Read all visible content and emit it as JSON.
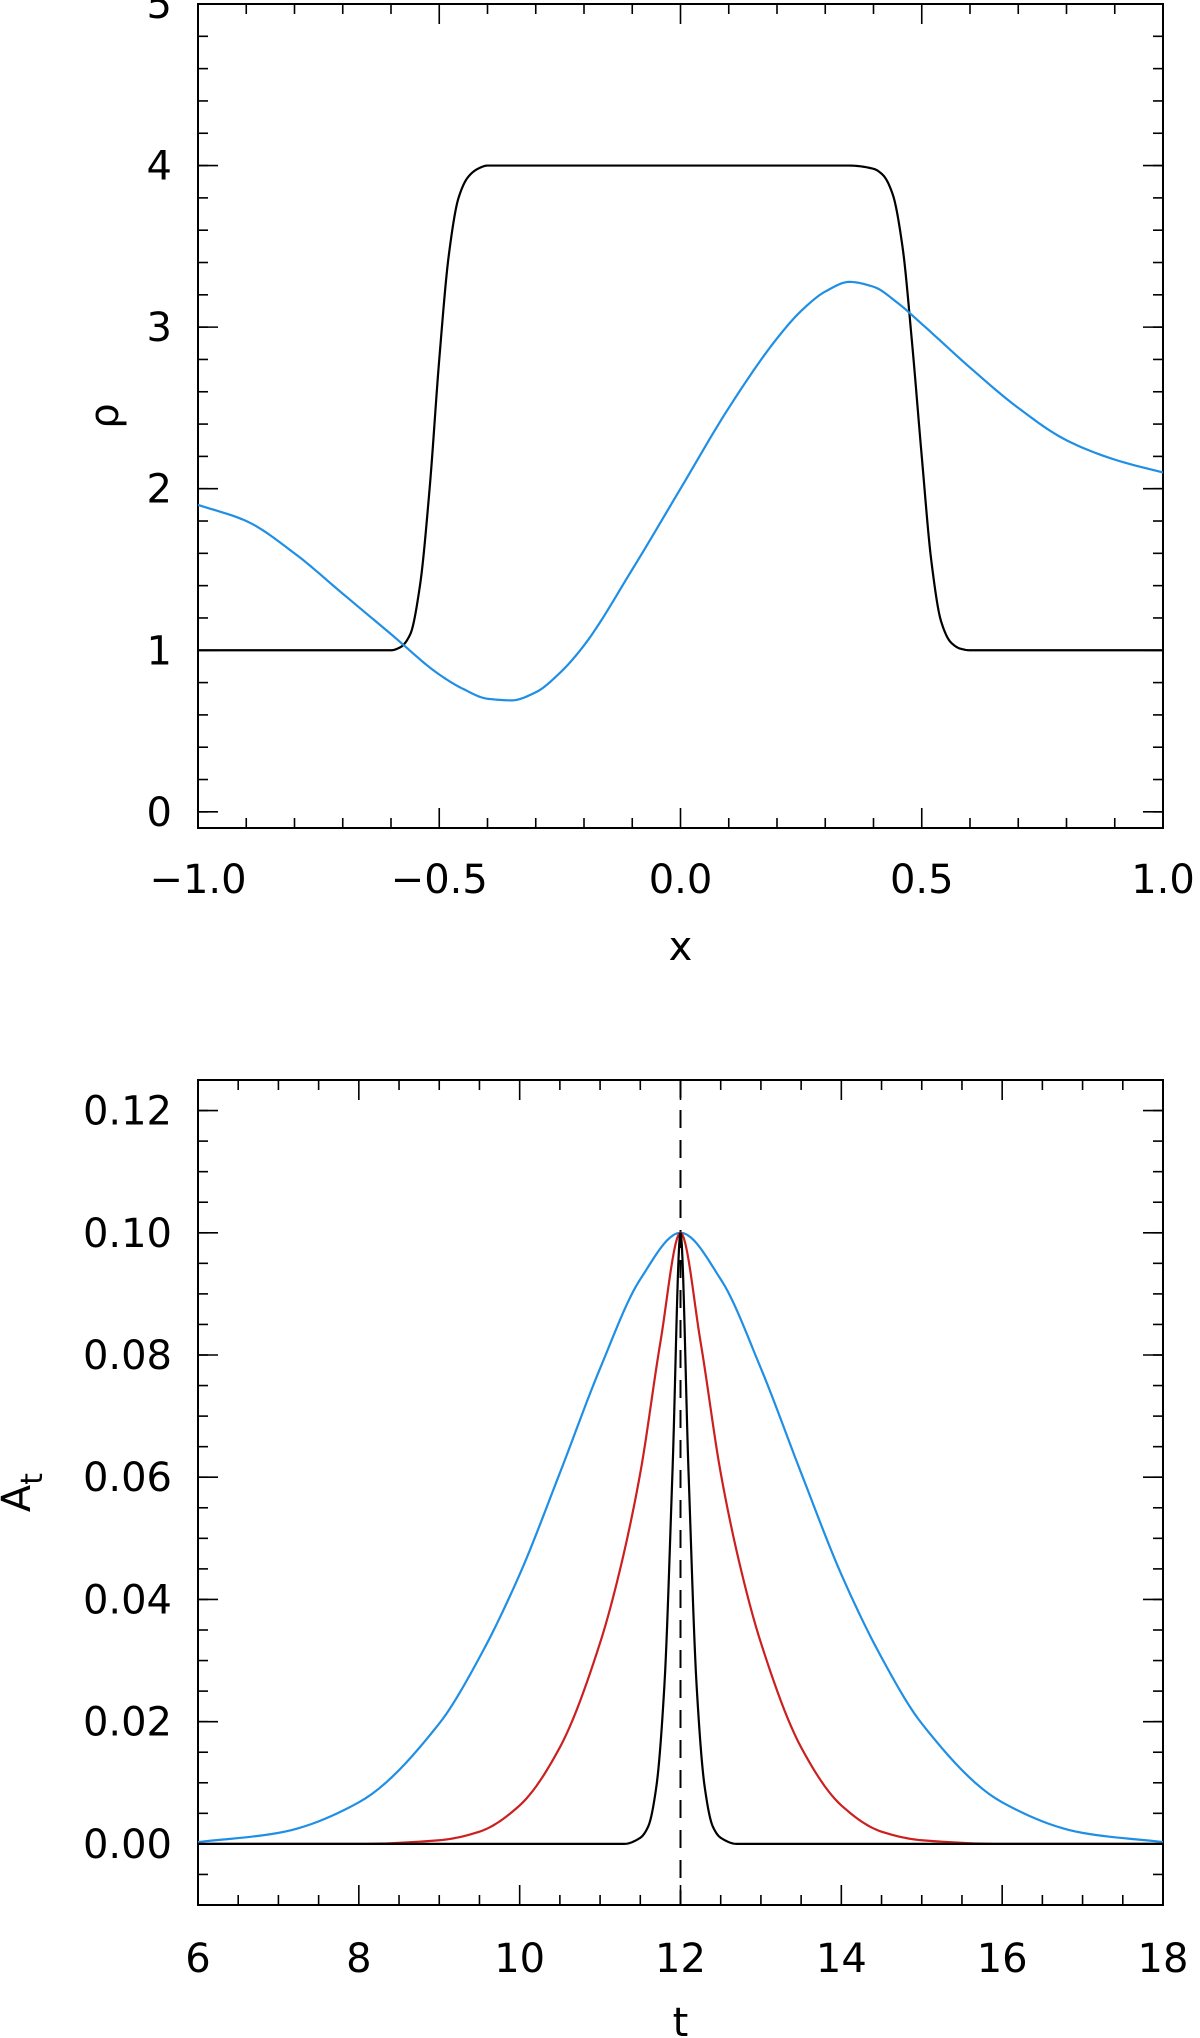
{
  "chart_data": [
    {
      "type": "line",
      "xlabel": "x",
      "ylabel": "ρ",
      "xlim": [
        -1.0,
        1.0
      ],
      "ylim": [
        -0.1,
        5.0
      ],
      "xticks": [
        -1.0,
        -0.5,
        0.0,
        0.5,
        1.0
      ],
      "xtick_labels": [
        "−1.0",
        "−0.5",
        "0.0",
        "0.5",
        "1.0"
      ],
      "yticks": [
        0,
        1,
        2,
        3,
        4,
        5
      ],
      "ytick_labels": [
        "0",
        "1",
        "2",
        "3",
        "4",
        "5"
      ],
      "grid": false,
      "series": [
        {
          "color": "#000000",
          "x": [
            -1.0,
            -0.9,
            -0.8,
            -0.7,
            -0.6,
            -0.58,
            -0.56,
            -0.54,
            -0.52,
            -0.5,
            -0.48,
            -0.46,
            -0.44,
            -0.42,
            -0.4,
            -0.35,
            -0.3,
            -0.2,
            -0.1,
            0.0,
            0.1,
            0.2,
            0.3,
            0.35,
            0.4,
            0.42,
            0.44,
            0.46,
            0.48,
            0.5,
            0.52,
            0.54,
            0.56,
            0.58,
            0.6,
            0.7,
            0.8,
            0.9,
            1.0
          ],
          "y": [
            1.0,
            1.0,
            1.0,
            1.0,
            1.0,
            1.02,
            1.1,
            1.4,
            2.0,
            2.8,
            3.45,
            3.8,
            3.93,
            3.98,
            4.0,
            4.0,
            4.0,
            4.0,
            4.0,
            4.0,
            4.0,
            4.0,
            4.0,
            4.0,
            3.98,
            3.94,
            3.82,
            3.5,
            2.9,
            2.2,
            1.55,
            1.18,
            1.05,
            1.01,
            1.0,
            1.0,
            1.0,
            1.0,
            1.0
          ]
        },
        {
          "color": "#1f8fe5",
          "x": [
            -1.0,
            -0.9,
            -0.8,
            -0.7,
            -0.6,
            -0.5,
            -0.45,
            -0.4,
            -0.35,
            -0.3,
            -0.25,
            -0.2,
            -0.1,
            0.0,
            0.1,
            0.2,
            0.25,
            0.3,
            0.35,
            0.4,
            0.45,
            0.5,
            0.6,
            0.7,
            0.8,
            0.9,
            1.0
          ],
          "y": [
            1.9,
            1.8,
            1.6,
            1.35,
            1.1,
            0.85,
            0.76,
            0.7,
            0.69,
            0.74,
            0.86,
            1.03,
            1.5,
            2.0,
            2.5,
            2.93,
            3.1,
            3.22,
            3.28,
            3.25,
            3.15,
            3.02,
            2.75,
            2.5,
            2.3,
            2.18,
            2.1
          ]
        }
      ]
    },
    {
      "type": "line",
      "xlabel": "t",
      "ylabel": "A",
      "ylabel_sub": "t",
      "xlim": [
        6,
        18
      ],
      "ylim": [
        -0.01,
        0.125
      ],
      "xticks": [
        6,
        8,
        10,
        12,
        14,
        16,
        18
      ],
      "xtick_labels": [
        "6",
        "8",
        "10",
        "12",
        "14",
        "16",
        "18"
      ],
      "yticks": [
        0.0,
        0.02,
        0.04,
        0.06,
        0.08,
        0.1,
        0.12
      ],
      "ytick_labels": [
        "0.00",
        "0.02",
        "0.04",
        "0.06",
        "0.08",
        "0.10",
        "0.12"
      ],
      "grid": false,
      "vline": {
        "x": 12,
        "style": "dashed"
      },
      "series": [
        {
          "color": "#1f8fe5",
          "x": [
            6,
            7,
            8,
            9,
            9.5,
            10,
            10.5,
            11,
            11.5,
            12,
            12.5,
            13,
            13.5,
            14,
            14.5,
            15,
            16,
            17,
            18
          ],
          "y": [
            0.0003,
            0.0018,
            0.0068,
            0.0197,
            0.0305,
            0.0441,
            0.0607,
            0.0778,
            0.0924,
            0.1,
            0.0924,
            0.0778,
            0.0607,
            0.0441,
            0.0305,
            0.0197,
            0.0068,
            0.0018,
            0.0003
          ]
        },
        {
          "color": "#cc1f1f",
          "x": [
            6,
            8,
            9,
            9.5,
            10,
            10.5,
            11,
            11.25,
            11.5,
            11.75,
            12,
            12.25,
            12.5,
            12.75,
            13,
            13.5,
            14,
            14.5,
            15,
            16,
            18
          ],
          "y": [
            0.0,
            0.0,
            0.0006,
            0.002,
            0.0063,
            0.0158,
            0.0329,
            0.045,
            0.0607,
            0.0821,
            0.1,
            0.0821,
            0.0607,
            0.045,
            0.0329,
            0.0158,
            0.0063,
            0.002,
            0.0006,
            0.0,
            0.0
          ]
        },
        {
          "color": "#000000",
          "x": [
            6,
            11.3,
            11.5,
            11.6,
            11.7,
            11.8,
            11.9,
            12.0,
            12.1,
            12.2,
            12.3,
            12.4,
            12.5,
            12.7,
            18
          ],
          "y": [
            0.0,
            0.0,
            0.001,
            0.0029,
            0.0094,
            0.026,
            0.0608,
            0.1,
            0.0608,
            0.026,
            0.0094,
            0.0029,
            0.001,
            0.0,
            0.0
          ]
        }
      ]
    }
  ]
}
